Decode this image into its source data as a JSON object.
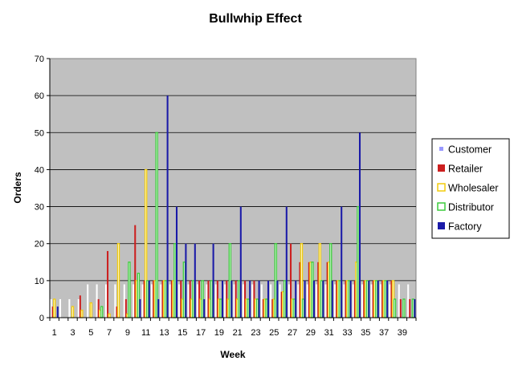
{
  "chart_data": {
    "type": "bar",
    "title": "Bullwhip Effect",
    "xlabel": "Week",
    "ylabel": "Orders",
    "ylim": [
      0,
      70
    ],
    "yticks": [
      0,
      10,
      20,
      30,
      40,
      50,
      60,
      70
    ],
    "xtick_labels": [
      "1",
      "3",
      "5",
      "7",
      "9",
      "11",
      "13",
      "15",
      "17",
      "19",
      "21",
      "23",
      "25",
      "27",
      "29",
      "31",
      "33",
      "35",
      "37",
      "39"
    ],
    "categories": [
      1,
      2,
      3,
      4,
      5,
      6,
      7,
      8,
      9,
      10,
      11,
      12,
      13,
      14,
      15,
      16,
      17,
      18,
      19,
      20,
      21,
      22,
      23,
      24,
      25,
      26,
      27,
      28,
      29,
      30,
      31,
      32,
      33,
      34,
      35,
      36,
      37,
      38,
      39,
      40
    ],
    "grid": true,
    "legend_position": "right",
    "plot_background": "#c0c0c0",
    "series": [
      {
        "name": "Customer",
        "color": "#ffffff",
        "legend_color": "#9999ff",
        "outline": false,
        "values": [
          5,
          5,
          5,
          5,
          9,
          9,
          9,
          9,
          9,
          9,
          9,
          9,
          9,
          9,
          9,
          9,
          9,
          9,
          9,
          9,
          9,
          9,
          9,
          9,
          9,
          9,
          9,
          9,
          9,
          9,
          9,
          9,
          9,
          9,
          9,
          9,
          9,
          9,
          9,
          9
        ]
      },
      {
        "name": "Retailer",
        "color": "#cc1f1f",
        "legend_color": "#cc1f1f",
        "outline": false,
        "values": [
          3,
          0,
          0,
          6,
          0,
          5,
          18,
          3,
          5,
          25,
          10,
          10,
          10,
          10,
          10,
          10,
          10,
          10,
          10,
          10,
          10,
          10,
          10,
          5,
          5,
          7,
          20,
          15,
          15,
          15,
          15,
          10,
          10,
          10,
          10,
          10,
          10,
          10,
          5,
          5
        ]
      },
      {
        "name": "Wholesaler",
        "color": "#ffffff",
        "legend_color": "#ffffff",
        "outline": "#f2cc0c",
        "values": [
          5,
          0,
          3,
          2,
          4,
          2,
          1,
          20,
          1,
          10,
          40,
          10,
          10,
          10,
          5,
          5,
          5,
          5,
          5,
          5,
          5,
          5,
          5,
          5,
          5,
          7,
          5,
          20,
          15,
          20,
          15,
          10,
          10,
          15,
          10,
          10,
          10,
          10,
          0,
          0
        ]
      },
      {
        "name": "Distributor",
        "color": "#ffffff",
        "legend_color": "#ffffff",
        "outline": "#3ccc3c",
        "values": [
          0,
          0,
          0,
          0,
          0,
          3,
          0,
          0,
          15,
          12,
          10,
          50,
          10,
          20,
          15,
          10,
          10,
          10,
          5,
          20,
          10,
          5,
          5,
          5,
          20,
          10,
          5,
          5,
          15,
          10,
          20,
          10,
          10,
          30,
          10,
          10,
          10,
          5,
          5,
          5
        ]
      },
      {
        "name": "Factory",
        "color": "#1a1aa8",
        "legend_color": "#1a1aa8",
        "outline": false,
        "values": [
          3,
          0,
          0,
          0,
          0,
          0,
          0,
          0,
          0,
          5,
          10,
          5,
          60,
          30,
          20,
          20,
          5,
          20,
          10,
          10,
          30,
          10,
          10,
          10,
          10,
          30,
          10,
          10,
          10,
          10,
          10,
          30,
          10,
          50,
          10,
          10,
          10,
          0,
          0,
          5
        ]
      }
    ]
  }
}
